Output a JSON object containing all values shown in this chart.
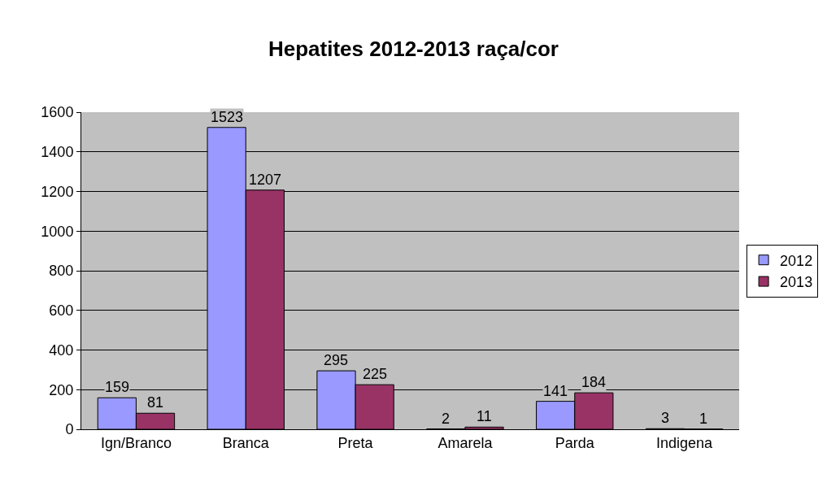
{
  "chart_data": {
    "type": "bar",
    "title": "Hepatites 2012-2013 raça/cor",
    "categories": [
      "Ign/Branco",
      "Branca",
      "Preta",
      "Amarela",
      "Parda",
      "Indigena"
    ],
    "series": [
      {
        "name": "2012",
        "color": "#9999ff",
        "values": [
          159,
          1523,
          295,
          2,
          141,
          3
        ]
      },
      {
        "name": "2013",
        "color": "#993366",
        "values": [
          81,
          1207,
          225,
          11,
          184,
          1
        ]
      }
    ],
    "ylim": [
      0,
      1600
    ],
    "yticks": [
      0,
      200,
      400,
      600,
      800,
      1000,
      1200,
      1400,
      1600
    ],
    "grid": "y",
    "legend": "right",
    "data_labels": true
  }
}
